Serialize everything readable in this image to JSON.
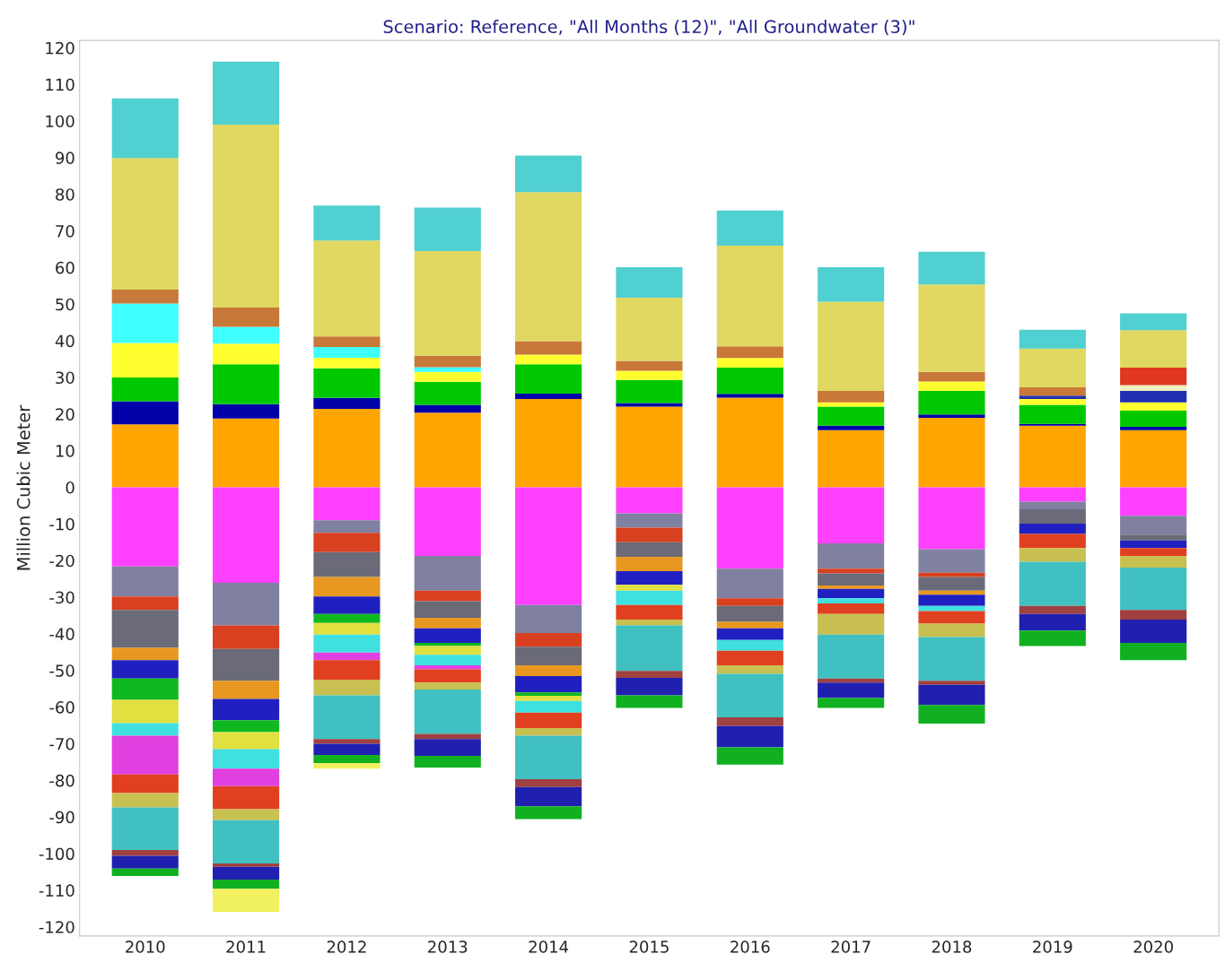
{
  "chart_data": {
    "type": "bar",
    "stacked": true,
    "title": "Scenario: Reference, \"All Months (12)\", \"All Groundwater (3)\"",
    "ylabel": "Million Cubic Meter",
    "categories": [
      "2010",
      "2011",
      "2012",
      "2013",
      "2014",
      "2015",
      "2016",
      "2017",
      "2018",
      "2019",
      "2020"
    ],
    "ylim": [
      -122.5,
      122
    ],
    "yticks": [
      -120,
      -110,
      -100,
      -90,
      -80,
      -70,
      -60,
      -50,
      -40,
      -30,
      -20,
      -10,
      0,
      10,
      20,
      30,
      40,
      50,
      60,
      70,
      80,
      90,
      100,
      110,
      120
    ],
    "grid": false,
    "series": [
      {
        "color": "#ffa500",
        "values": [
          17.2,
          18.8,
          21.4,
          20.4,
          24.1,
          22.0,
          24.5,
          15.6,
          19.0,
          16.8,
          15.6
        ]
      },
      {
        "color": "#0000a8",
        "values": [
          6.3,
          3.9,
          3.0,
          2.1,
          1.5,
          1.0,
          1.0,
          1.2,
          0.9,
          0.5,
          0.9
        ]
      },
      {
        "color": "#00c800",
        "values": [
          6.5,
          10.9,
          8.1,
          6.3,
          8.0,
          6.3,
          7.2,
          5.2,
          6.4,
          5.2,
          4.4
        ]
      },
      {
        "color": "#ffff30",
        "values": [
          9.4,
          5.6,
          2.9,
          2.7,
          2.6,
          2.5,
          2.6,
          1.2,
          2.6,
          1.6,
          2.3
        ]
      },
      {
        "color": "#40ffff",
        "values": [
          10.8,
          4.6,
          2.9,
          1.3,
          null,
          null,
          null,
          null,
          null,
          null,
          null
        ]
      },
      {
        "color": "#2030b0",
        "values": [
          null,
          null,
          null,
          null,
          null,
          null,
          null,
          null,
          null,
          0.9,
          3.1
        ]
      },
      {
        "color": "#f0f0c0",
        "values": [
          null,
          null,
          null,
          null,
          null,
          null,
          null,
          null,
          null,
          null,
          1.6
        ]
      },
      {
        "color": "#e03820",
        "values": [
          null,
          null,
          null,
          null,
          null,
          null,
          null,
          null,
          null,
          null,
          4.8
        ]
      },
      {
        "color": "#c87838",
        "values": [
          3.8,
          5.3,
          2.9,
          3.1,
          3.7,
          2.7,
          3.2,
          3.1,
          2.6,
          2.3,
          null
        ]
      },
      {
        "color": "#e0d860",
        "values": [
          35.9,
          49.9,
          26.2,
          28.6,
          40.7,
          17.3,
          27.5,
          24.4,
          23.9,
          10.6,
          10.2
        ]
      },
      {
        "color": "#50d0d0",
        "values": [
          16.3,
          17.2,
          9.5,
          11.9,
          10.0,
          8.3,
          9.6,
          9.4,
          8.9,
          5.1,
          4.6
        ]
      },
      {
        "color": "#ff40ff",
        "values": [
          -21.6,
          -26.1,
          -9.0,
          -18.7,
          -32.1,
          -7.1,
          -22.2,
          -15.3,
          -16.9,
          -3.9,
          -7.8
        ]
      },
      {
        "color": "#8080a0",
        "values": [
          -8.2,
          -11.6,
          -3.4,
          -9.5,
          -7.7,
          -3.9,
          -8.1,
          -6.9,
          -6.4,
          -2.1,
          -5.1
        ]
      },
      {
        "color": "#d84020",
        "values": [
          -3.7,
          -6.4,
          -5.3,
          -2.9,
          -3.7,
          -4.0,
          -2.1,
          -1.3,
          -1.2,
          null,
          null
        ]
      },
      {
        "color": "#6a6a78",
        "values": [
          -10.3,
          -8.7,
          -6.8,
          -4.5,
          -5.1,
          -4.0,
          -4.3,
          -3.3,
          -3.7,
          -3.9,
          -1.6
        ]
      },
      {
        "color": "#e89820",
        "values": [
          -3.4,
          -5.0,
          -5.3,
          -2.9,
          -2.9,
          -3.9,
          -1.8,
          -0.9,
          -1.1,
          null,
          null
        ]
      },
      {
        "color": "#2020c0",
        "values": [
          -5.0,
          -5.8,
          -4.8,
          -4.0,
          -4.5,
          -3.7,
          -3.2,
          -2.6,
          -3.1,
          -2.8,
          -2.1
        ]
      },
      {
        "color": "#10b820",
        "values": [
          -5.8,
          -3.2,
          -2.4,
          -0.8,
          -0.9,
          null,
          null,
          null,
          null,
          null,
          null
        ]
      },
      {
        "color": "#e0e040",
        "values": [
          -6.4,
          -4.7,
          -3.2,
          -2.4,
          -1.4,
          -1.6,
          null,
          null,
          null,
          null,
          null
        ]
      },
      {
        "color": "#40e0e0",
        "values": [
          -3.4,
          -5.3,
          -4.9,
          -2.9,
          -3.2,
          -3.9,
          -2.9,
          -1.4,
          -1.4,
          null,
          null
        ]
      },
      {
        "color": "#e040e0",
        "values": [
          -10.6,
          -4.8,
          -2.1,
          -1.1,
          null,
          null,
          null,
          null,
          null,
          null,
          null
        ]
      },
      {
        "color": "#e04020",
        "values": [
          -5.1,
          -6.3,
          -5.3,
          -3.6,
          -4.2,
          -4.0,
          -4.0,
          -2.9,
          -3.4,
          -3.9,
          -2.1
        ]
      },
      {
        "color": "#c8c050",
        "values": [
          -3.9,
          -3.0,
          -4.3,
          -1.9,
          -2.1,
          -1.6,
          -2.3,
          -5.6,
          -3.7,
          -3.7,
          -3.2
        ]
      },
      {
        "color": "#40c0c0",
        "values": [
          -11.6,
          -11.8,
          -11.9,
          -12.1,
          -11.9,
          -12.4,
          -11.9,
          -12.0,
          -11.9,
          -12.1,
          -11.6
        ]
      },
      {
        "color": "#a04040",
        "values": [
          -1.6,
          -0.9,
          -1.3,
          -1.4,
          -2.1,
          -1.9,
          -2.4,
          -1.1,
          -1.1,
          -2.2,
          -2.6
        ]
      },
      {
        "color": "#2020b0",
        "values": [
          -3.5,
          -3.5,
          -3.1,
          -4.6,
          -5.3,
          -4.8,
          -5.8,
          -4.2,
          -5.5,
          -4.5,
          -6.4
        ]
      },
      {
        "color": "#10b020",
        "values": [
          -2.0,
          -2.5,
          -2.2,
          -3.2,
          -3.5,
          -3.4,
          -4.7,
          -2.7,
          -5.1,
          -4.2,
          -4.7
        ]
      },
      {
        "color": "#f0f060",
        "values": [
          null,
          -6.3,
          -1.5,
          null,
          null,
          null,
          null,
          null,
          null,
          null,
          null
        ]
      }
    ]
  }
}
